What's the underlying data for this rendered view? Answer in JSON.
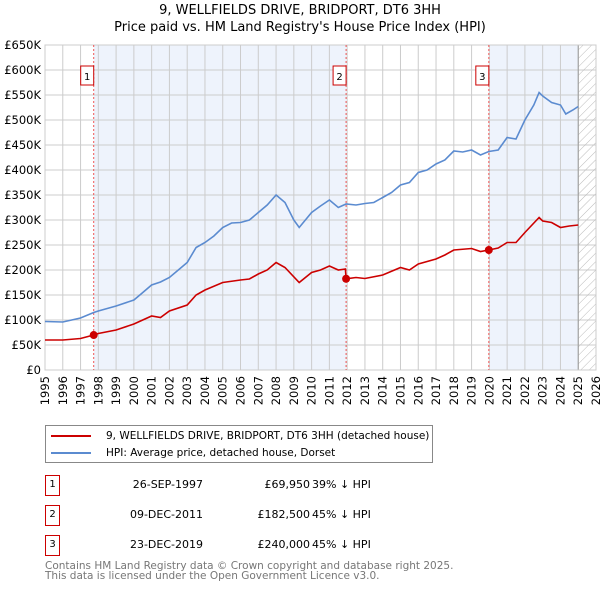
{
  "chart_data": {
    "type": "line",
    "title": "9, WELLFIELDS DRIVE, BRIDPORT, DT6 3HH",
    "subtitle": "Price paid vs. HM Land Registry's House Price Index (HPI)",
    "xlim": [
      1995,
      2026
    ],
    "ylim": [
      0,
      650000
    ],
    "x_ticks": [
      "1995",
      "1996",
      "1997",
      "1998",
      "1999",
      "2000",
      "2001",
      "2002",
      "2003",
      "2004",
      "2005",
      "2006",
      "2007",
      "2008",
      "2009",
      "2010",
      "2011",
      "2012",
      "2013",
      "2014",
      "2015",
      "2016",
      "2017",
      "2018",
      "2019",
      "2020",
      "2021",
      "2022",
      "2023",
      "2024",
      "2025",
      "2026"
    ],
    "y_ticks": [
      {
        "v": 0,
        "label": "£0"
      },
      {
        "v": 50000,
        "label": "£50K"
      },
      {
        "v": 100000,
        "label": "£100K"
      },
      {
        "v": 150000,
        "label": "£150K"
      },
      {
        "v": 200000,
        "label": "£200K"
      },
      {
        "v": 250000,
        "label": "£250K"
      },
      {
        "v": 300000,
        "label": "£300K"
      },
      {
        "v": 350000,
        "label": "£350K"
      },
      {
        "v": 400000,
        "label": "£400K"
      },
      {
        "v": 450000,
        "label": "£450K"
      },
      {
        "v": 500000,
        "label": "£500K"
      },
      {
        "v": 550000,
        "label": "£550K"
      },
      {
        "v": 600000,
        "label": "£600K"
      },
      {
        "v": 650000,
        "label": "£650K"
      }
    ],
    "grid": true,
    "forecast_hatch_from": 2025.0,
    "series": [
      {
        "name": "9, WELLFIELDS DRIVE, BRIDPORT, DT6 3HH (detached house)",
        "color": "#cc0000",
        "points": [
          [
            1995,
            60000
          ],
          [
            1996,
            60000
          ],
          [
            1997,
            63000
          ],
          [
            1997.74,
            69950
          ],
          [
            1998,
            73000
          ],
          [
            1999,
            80000
          ],
          [
            2000,
            92000
          ],
          [
            2001,
            108000
          ],
          [
            2001.5,
            105000
          ],
          [
            2002,
            118000
          ],
          [
            2003,
            130000
          ],
          [
            2003.5,
            150000
          ],
          [
            2004,
            160000
          ],
          [
            2005,
            175000
          ],
          [
            2006,
            180000
          ],
          [
            2006.5,
            182000
          ],
          [
            2007,
            192000
          ],
          [
            2007.5,
            200000
          ],
          [
            2008,
            215000
          ],
          [
            2008.5,
            205000
          ],
          [
            2009.3,
            175000
          ],
          [
            2010,
            195000
          ],
          [
            2010.5,
            200000
          ],
          [
            2011,
            208000
          ],
          [
            2011.5,
            200000
          ],
          [
            2011.9,
            202000
          ],
          [
            2011.94,
            182500
          ],
          [
            2012.5,
            185000
          ],
          [
            2013,
            183000
          ],
          [
            2014,
            190000
          ],
          [
            2015,
            205000
          ],
          [
            2015.5,
            200000
          ],
          [
            2016,
            212000
          ],
          [
            2017,
            222000
          ],
          [
            2017.5,
            230000
          ],
          [
            2018,
            240000
          ],
          [
            2019,
            243000
          ],
          [
            2019.5,
            237000
          ],
          [
            2019.97,
            240000
          ],
          [
            2020.5,
            244000
          ],
          [
            2021,
            255000
          ],
          [
            2021.5,
            255000
          ],
          [
            2022,
            275000
          ],
          [
            2022.8,
            305000
          ],
          [
            2023,
            298000
          ],
          [
            2023.5,
            295000
          ],
          [
            2024,
            285000
          ],
          [
            2024.5,
            288000
          ],
          [
            2025,
            290000
          ]
        ]
      },
      {
        "name": "HPI: Average price, detached house, Dorset",
        "color": "#5b8bd0",
        "points": [
          [
            1995,
            97000
          ],
          [
            1996,
            96000
          ],
          [
            1996.5,
            100000
          ],
          [
            1997,
            104000
          ],
          [
            1997.74,
            115000
          ],
          [
            1998,
            118000
          ],
          [
            1999,
            128000
          ],
          [
            2000,
            140000
          ],
          [
            2000.5,
            155000
          ],
          [
            2001,
            170000
          ],
          [
            2001.5,
            176000
          ],
          [
            2002,
            185000
          ],
          [
            2002.5,
            200000
          ],
          [
            2003,
            215000
          ],
          [
            2003.5,
            245000
          ],
          [
            2004,
            255000
          ],
          [
            2004.5,
            268000
          ],
          [
            2005,
            285000
          ],
          [
            2005.5,
            294000
          ],
          [
            2006,
            295000
          ],
          [
            2006.5,
            300000
          ],
          [
            2007,
            315000
          ],
          [
            2007.5,
            330000
          ],
          [
            2008,
            350000
          ],
          [
            2008.5,
            335000
          ],
          [
            2009,
            300000
          ],
          [
            2009.3,
            285000
          ],
          [
            2010,
            315000
          ],
          [
            2010.5,
            328000
          ],
          [
            2011,
            340000
          ],
          [
            2011.5,
            325000
          ],
          [
            2011.94,
            332000
          ],
          [
            2012.5,
            330000
          ],
          [
            2013,
            333000
          ],
          [
            2013.5,
            335000
          ],
          [
            2014,
            345000
          ],
          [
            2014.5,
            355000
          ],
          [
            2015,
            370000
          ],
          [
            2015.5,
            375000
          ],
          [
            2016,
            395000
          ],
          [
            2016.5,
            400000
          ],
          [
            2017,
            412000
          ],
          [
            2017.5,
            420000
          ],
          [
            2018,
            438000
          ],
          [
            2018.5,
            436000
          ],
          [
            2019,
            440000
          ],
          [
            2019.5,
            430000
          ],
          [
            2019.97,
            437000
          ],
          [
            2020.5,
            440000
          ],
          [
            2021,
            465000
          ],
          [
            2021.5,
            462000
          ],
          [
            2022,
            500000
          ],
          [
            2022.5,
            530000
          ],
          [
            2022.8,
            555000
          ],
          [
            2023,
            548000
          ],
          [
            2023.5,
            535000
          ],
          [
            2024,
            530000
          ],
          [
            2024.3,
            512000
          ],
          [
            2024.7,
            520000
          ],
          [
            2025,
            527000
          ]
        ]
      }
    ],
    "sales": [
      {
        "id": "1",
        "x": 1997.74,
        "value": 69950,
        "date": "26-SEP-1997",
        "price": "£69,950",
        "diff": "39% ↓ HPI"
      },
      {
        "id": "2",
        "x": 2011.94,
        "value": 182500,
        "date": "09-DEC-2011",
        "price": "£182,500",
        "diff": "45% ↓ HPI"
      },
      {
        "id": "3",
        "x": 2019.97,
        "value": 240000,
        "date": "23-DEC-2019",
        "price": "£240,000",
        "diff": "45% ↓ HPI"
      }
    ]
  },
  "footer": {
    "line1": "Contains HM Land Registry data © Crown copyright and database right 2025.",
    "line2": "This data is licensed under the Open Government Licence v3.0."
  }
}
